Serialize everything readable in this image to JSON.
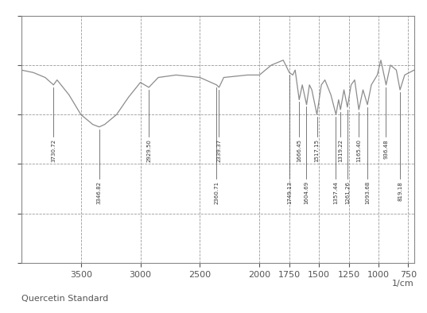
{
  "chart_data": {
    "type": "line",
    "title": "Quercetin Standard",
    "x_label": "1/cm",
    "x": [
      4000,
      3900,
      3800,
      3730,
      3700,
      3600,
      3500,
      3400,
      3346,
      3300,
      3200,
      3100,
      3000,
      2929,
      2850,
      2700,
      2500,
      2360,
      2339,
      2300,
      2100,
      2000,
      1900,
      1800,
      1749,
      1720,
      1700,
      1666,
      1640,
      1604,
      1580,
      1560,
      1517,
      1480,
      1450,
      1400,
      1357,
      1335,
      1319,
      1290,
      1261,
      1230,
      1200,
      1165,
      1130,
      1093,
      1060,
      1010,
      980,
      936,
      900,
      850,
      819,
      780,
      700
    ],
    "values": [
      78,
      77,
      75,
      72,
      74,
      68,
      60,
      56,
      55,
      56,
      60,
      67,
      73,
      71,
      75,
      76,
      75,
      72,
      71,
      75,
      76,
      76,
      80,
      82,
      77,
      76,
      78,
      66,
      72,
      64,
      72,
      70,
      60,
      72,
      74,
      68,
      60,
      66,
      62,
      70,
      63,
      72,
      74,
      62,
      70,
      64,
      72,
      76,
      82,
      72,
      80,
      78,
      70,
      76,
      78
    ],
    "color": "#8c8c8c",
    "peaks": [
      3730.72,
      3346.82,
      2929.5,
      2360.71,
      2339.37,
      1749.13,
      1666.45,
      1604.69,
      1517.15,
      1357.44,
      1319.22,
      1261.26,
      1165.4,
      1093.68,
      936.48,
      819.18
    ],
    "peak_labels": [
      "3730.72",
      "3346.82",
      "2929.50",
      "2360.71",
      "2339.37",
      "1749.13",
      "1666.45",
      "1604.69",
      "1517.15",
      "1357.44",
      "1319.22",
      "1261.26",
      "1165.40",
      "1093.68",
      "936.48",
      "819.18"
    ],
    "xlim": [
      4000,
      700
    ],
    "xticks": [
      3500,
      3000,
      2500,
      2000,
      1750,
      1500,
      1250,
      1000,
      750
    ],
    "ylim": [
      0,
      100
    ],
    "yticks": [
      0,
      20,
      40,
      60,
      80,
      100
    ],
    "grid": true,
    "tick_labels": "x",
    "line_style": "solid"
  }
}
